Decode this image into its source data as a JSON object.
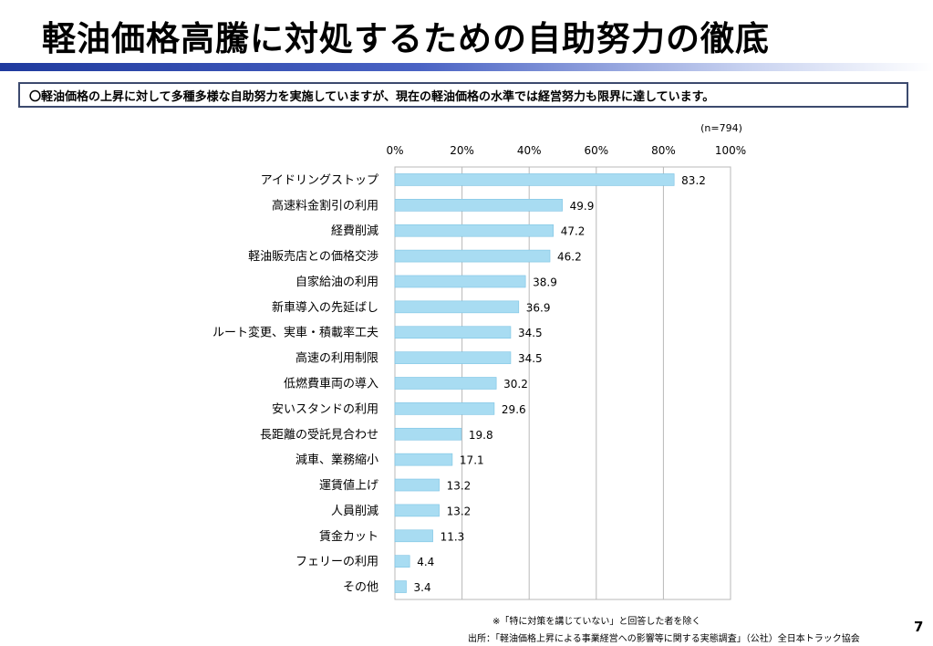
{
  "slide": {
    "title": "軽油価格高騰に対処するための自助努力の徹底",
    "summary": "〇軽油価格の上昇に対して多種多様な自助努力を実施していますが、現在の軽油価格の水準では経営努力も限界に達しています。",
    "note": "※「特に対策を講じていない」と回答した者を除く",
    "source": "出所：「軽油価格上昇による事業経営への影響等に関する実態調査」（公社）全日本トラック協会",
    "page_number": "7",
    "colors": {
      "bar": "#a8dcf2",
      "bar_edge": "#7cc3e3",
      "title_bar": "#1f3a9e",
      "summary_border": "#3c4a6e"
    }
  },
  "chart_data": {
    "type": "bar",
    "orientation": "horizontal",
    "sample_size": "(n=794)",
    "categories": [
      "アイドリングストップ",
      "高速料金割引の利用",
      "経費削減",
      "軽油販売店との価格交渉",
      "自家給油の利用",
      "新車導入の先延ばし",
      "ルート変更、実車・積載率工夫",
      "高速の利用制限",
      "低燃費車両の導入",
      "安いスタンドの利用",
      "長距離の受託見合わせ",
      "減車、業務縮小",
      "運賃値上げ",
      "人員削減",
      "賃金カット",
      "フェリーの利用",
      "その他"
    ],
    "values": [
      83.2,
      49.9,
      47.2,
      46.2,
      38.9,
      36.9,
      34.5,
      34.5,
      30.2,
      29.6,
      19.8,
      17.1,
      13.2,
      13.2,
      11.3,
      4.4,
      3.4
    ],
    "value_labels": [
      "83.2",
      "49.9",
      "47.2",
      "46.2",
      "38.9",
      "36.9",
      "34.5",
      "34.5",
      "30.2",
      "29.6",
      "19.8",
      "17.1",
      "13.2",
      "13.2",
      "11.3",
      "4.4",
      "3.4"
    ],
    "xlim": [
      0,
      100
    ],
    "ticks": [
      0,
      20,
      40,
      60,
      80,
      100
    ],
    "tick_labels": [
      "0%",
      "20%",
      "40%",
      "60%",
      "80%",
      "100%"
    ],
    "axis_position": "top",
    "grid": true
  }
}
